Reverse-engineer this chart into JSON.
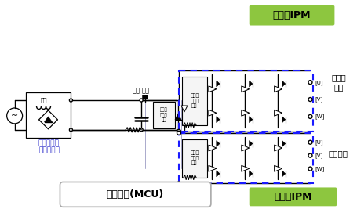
{
  "bg_color": "#ffffff",
  "noise_filter_label": "噪声滤波器",
  "capacitor_label": "电容",
  "inductor_label": "电感",
  "gate_driver_label": "门极驱\n动器及\n保护",
  "mcu_label": "微控制器(MCU)",
  "ipm_label": "变频器IPM",
  "compressor_label": "压缩机\n电机",
  "fan_label": "风扇电机",
  "ipm_green": "#8dc63f",
  "dashed_blue": "#1a1aff",
  "circuit_black": "#000000",
  "label_blue": "#3333cc",
  "uvw_labels": [
    "[U]",
    "[V]",
    "[W]"
  ],
  "figsize": [
    4.55,
    2.67
  ],
  "dpi": 100,
  "xlim": [
    0,
    455
  ],
  "ylim": [
    0,
    267
  ]
}
